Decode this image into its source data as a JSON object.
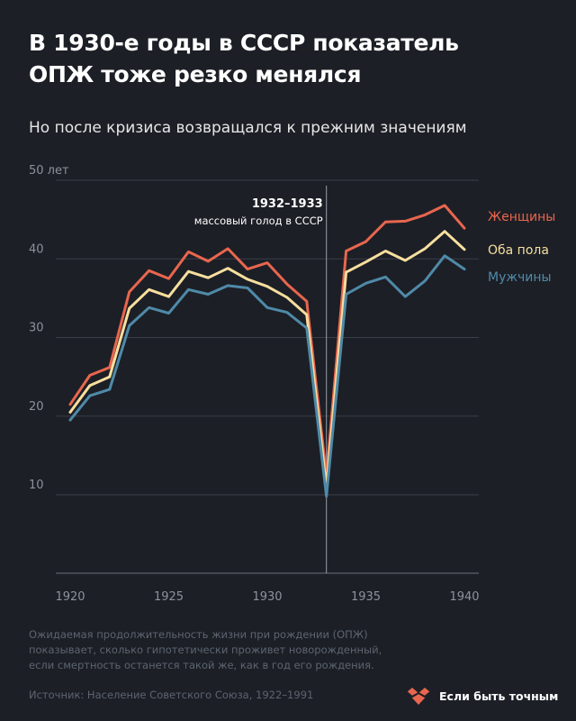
{
  "title_line1": "В 1930-е годы в СССР показатель",
  "title_line2": "ОПЖ тоже резко менялся",
  "subtitle": "Но после кризиса возвращался к прежним значениям",
  "note_line1": "Ожидаемая продолжительность жизни при рождении (ОПЖ)",
  "note_line2": "показывает, сколько гипотетически проживет новорожденный,",
  "note_line3": "если смертность останется такой же, как в год его рождения.",
  "source": "Источник: Население Советского Союза, 1922–1991",
  "brand": {
    "label": "Если быть точным",
    "icon": "heart-logo-icon"
  },
  "chart_data": {
    "type": "line",
    "x": [
      1920,
      1921,
      1922,
      1923,
      1924,
      1925,
      1926,
      1927,
      1928,
      1929,
      1930,
      1931,
      1932,
      1933,
      1934,
      1935,
      1936,
      1937,
      1938,
      1939,
      1940
    ],
    "xticks": [
      1920,
      1925,
      1930,
      1935,
      1940
    ],
    "yticks": [
      10,
      20,
      30,
      40,
      50
    ],
    "ytick_labels": [
      "10",
      "20",
      "30",
      "40",
      "50 лет"
    ],
    "ylim": [
      0,
      50
    ],
    "xlim": [
      1920,
      1940
    ],
    "grid": true,
    "series": [
      {
        "name": "Женщины",
        "color": "#e8664e",
        "values": [
          21.5,
          25.2,
          26.2,
          35.8,
          38.5,
          37.5,
          40.9,
          39.7,
          41.3,
          38.7,
          39.5,
          36.8,
          34.6,
          12.4,
          41.0,
          42.2,
          44.7,
          44.8,
          45.6,
          46.8,
          43.9
        ]
      },
      {
        "name": "Оба пола",
        "color": "#f7df9e",
        "values": [
          20.5,
          23.9,
          25.0,
          33.7,
          36.1,
          35.2,
          38.4,
          37.6,
          38.8,
          37.4,
          36.5,
          35.1,
          32.9,
          11.0,
          38.3,
          39.6,
          41.0,
          39.8,
          41.3,
          43.5,
          41.2
        ]
      },
      {
        "name": "Мужчины",
        "color": "#4f8aa8",
        "values": [
          19.5,
          22.6,
          23.4,
          31.5,
          33.8,
          33.1,
          36.1,
          35.5,
          36.6,
          36.3,
          33.8,
          33.2,
          31.2,
          9.8,
          35.5,
          36.9,
          37.7,
          35.2,
          37.2,
          40.4,
          38.7
        ]
      }
    ],
    "annotation": {
      "x": 1933,
      "label_bold": "1932–1933",
      "label": "массовый голод в СССР"
    }
  }
}
